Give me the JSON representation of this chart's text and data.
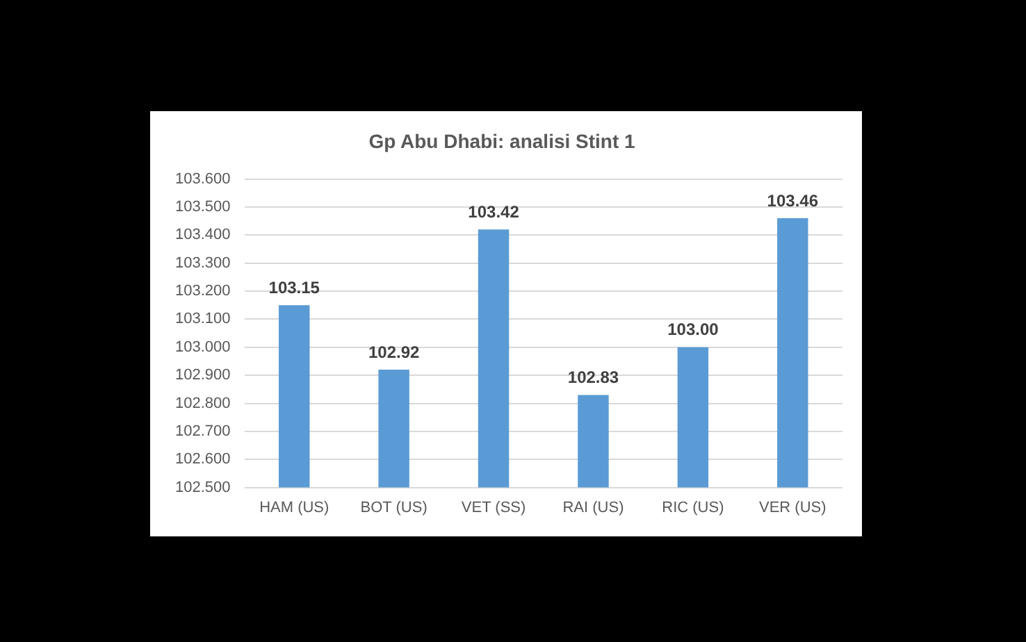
{
  "chart_data": {
    "type": "bar",
    "title": "Gp Abu Dhabi: analisi Stint 1",
    "categories": [
      "HAM (US)",
      "BOT (US)",
      "VET (SS)",
      "RAI (US)",
      "RIC (US)",
      "VER (US)"
    ],
    "values": [
      103.15,
      102.92,
      103.42,
      102.83,
      103.0,
      103.46
    ],
    "value_labels": [
      "103.15",
      "102.92",
      "103.42",
      "102.83",
      "103.00",
      "103.46"
    ],
    "color": "#5b9bd5",
    "ylim": [
      102.5,
      103.6
    ],
    "yticks": [
      {
        "value": 102.5,
        "label": "102.500"
      },
      {
        "value": 102.6,
        "label": "102.600"
      },
      {
        "value": 102.7,
        "label": "102.700"
      },
      {
        "value": 102.8,
        "label": "102.800"
      },
      {
        "value": 102.9,
        "label": "102.900"
      },
      {
        "value": 103.0,
        "label": "103.000"
      },
      {
        "value": 103.1,
        "label": "103.100"
      },
      {
        "value": 103.2,
        "label": "103.200"
      },
      {
        "value": 103.3,
        "label": "103.300"
      },
      {
        "value": 103.4,
        "label": "103.400"
      },
      {
        "value": 103.5,
        "label": "103.500"
      },
      {
        "value": 103.6,
        "label": "103.600"
      }
    ],
    "grid": "y"
  }
}
